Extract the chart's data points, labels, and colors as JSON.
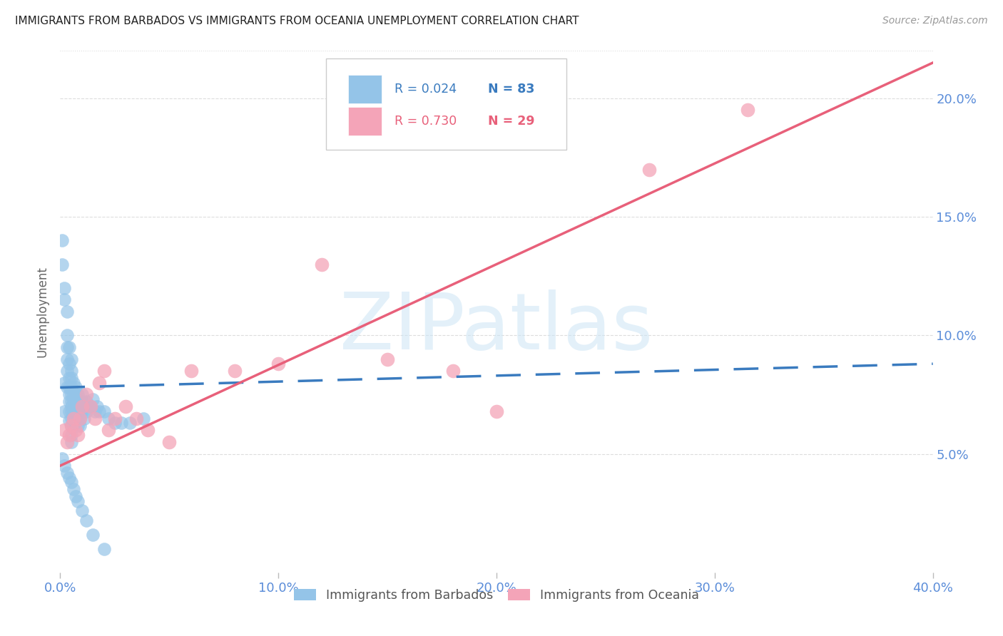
{
  "title": "IMMIGRANTS FROM BARBADOS VS IMMIGRANTS FROM OCEANIA UNEMPLOYMENT CORRELATION CHART",
  "source": "Source: ZipAtlas.com",
  "ylabel": "Unemployment",
  "watermark": "ZIPatlas",
  "x_min": 0.0,
  "x_max": 0.4,
  "y_min": 0.0,
  "y_max": 0.22,
  "x_ticks": [
    0.0,
    0.1,
    0.2,
    0.3,
    0.4
  ],
  "x_tick_labels": [
    "0.0%",
    "10.0%",
    "20.0%",
    "30.0%",
    "40.0%"
  ],
  "y_ticks": [
    0.05,
    0.1,
    0.15,
    0.2
  ],
  "y_tick_labels": [
    "5.0%",
    "10.0%",
    "15.0%",
    "20.0%"
  ],
  "barbados_color": "#94c4e8",
  "barbados_trend_color": "#3a7bbf",
  "barbados_label": "Immigrants from Barbados",
  "barbados_R": 0.024,
  "barbados_N": 83,
  "oceania_color": "#f4a4b8",
  "oceania_trend_color": "#e8607a",
  "oceania_label": "Immigrants from Oceania",
  "oceania_R": 0.73,
  "oceania_N": 29,
  "background_color": "#ffffff",
  "grid_color": "#dddddd",
  "tick_label_color": "#5b8dd9",
  "title_color": "#222222",
  "barbados_x": [
    0.001,
    0.001,
    0.002,
    0.002,
    0.002,
    0.002,
    0.003,
    0.003,
    0.003,
    0.003,
    0.003,
    0.003,
    0.004,
    0.004,
    0.004,
    0.004,
    0.004,
    0.004,
    0.004,
    0.004,
    0.005,
    0.005,
    0.005,
    0.005,
    0.005,
    0.005,
    0.005,
    0.005,
    0.005,
    0.005,
    0.005,
    0.005,
    0.006,
    0.006,
    0.006,
    0.006,
    0.006,
    0.006,
    0.007,
    0.007,
    0.007,
    0.007,
    0.007,
    0.008,
    0.008,
    0.008,
    0.008,
    0.008,
    0.009,
    0.009,
    0.009,
    0.009,
    0.01,
    0.01,
    0.01,
    0.011,
    0.011,
    0.012,
    0.012,
    0.013,
    0.014,
    0.015,
    0.016,
    0.017,
    0.018,
    0.02,
    0.022,
    0.025,
    0.028,
    0.032,
    0.038,
    0.001,
    0.002,
    0.003,
    0.004,
    0.005,
    0.006,
    0.007,
    0.008,
    0.01,
    0.012,
    0.015,
    0.02
  ],
  "barbados_y": [
    0.14,
    0.13,
    0.12,
    0.115,
    0.08,
    0.068,
    0.11,
    0.1,
    0.095,
    0.09,
    0.085,
    0.078,
    0.095,
    0.088,
    0.082,
    0.078,
    0.075,
    0.072,
    0.068,
    0.064,
    0.09,
    0.085,
    0.082,
    0.078,
    0.075,
    0.072,
    0.07,
    0.068,
    0.065,
    0.062,
    0.058,
    0.055,
    0.08,
    0.075,
    0.072,
    0.068,
    0.065,
    0.062,
    0.078,
    0.075,
    0.072,
    0.068,
    0.064,
    0.075,
    0.072,
    0.068,
    0.065,
    0.062,
    0.072,
    0.068,
    0.065,
    0.062,
    0.075,
    0.072,
    0.068,
    0.07,
    0.065,
    0.072,
    0.068,
    0.07,
    0.07,
    0.073,
    0.068,
    0.07,
    0.068,
    0.068,
    0.065,
    0.063,
    0.063,
    0.063,
    0.065,
    0.048,
    0.045,
    0.042,
    0.04,
    0.038,
    0.035,
    0.032,
    0.03,
    0.026,
    0.022,
    0.016,
    0.01
  ],
  "oceania_x": [
    0.002,
    0.003,
    0.004,
    0.005,
    0.006,
    0.007,
    0.008,
    0.009,
    0.01,
    0.012,
    0.014,
    0.016,
    0.018,
    0.02,
    0.022,
    0.025,
    0.03,
    0.035,
    0.04,
    0.05,
    0.06,
    0.08,
    0.1,
    0.12,
    0.15,
    0.18,
    0.2,
    0.27,
    0.315
  ],
  "oceania_y": [
    0.06,
    0.055,
    0.058,
    0.062,
    0.065,
    0.06,
    0.058,
    0.065,
    0.07,
    0.075,
    0.07,
    0.065,
    0.08,
    0.085,
    0.06,
    0.065,
    0.07,
    0.065,
    0.06,
    0.055,
    0.085,
    0.085,
    0.088,
    0.13,
    0.09,
    0.085,
    0.068,
    0.17,
    0.195
  ],
  "barb_trend_x": [
    0.0,
    0.4
  ],
  "barb_trend_y": [
    0.078,
    0.088
  ],
  "ocea_trend_x": [
    0.0,
    0.4
  ],
  "ocea_trend_y": [
    0.045,
    0.215
  ]
}
